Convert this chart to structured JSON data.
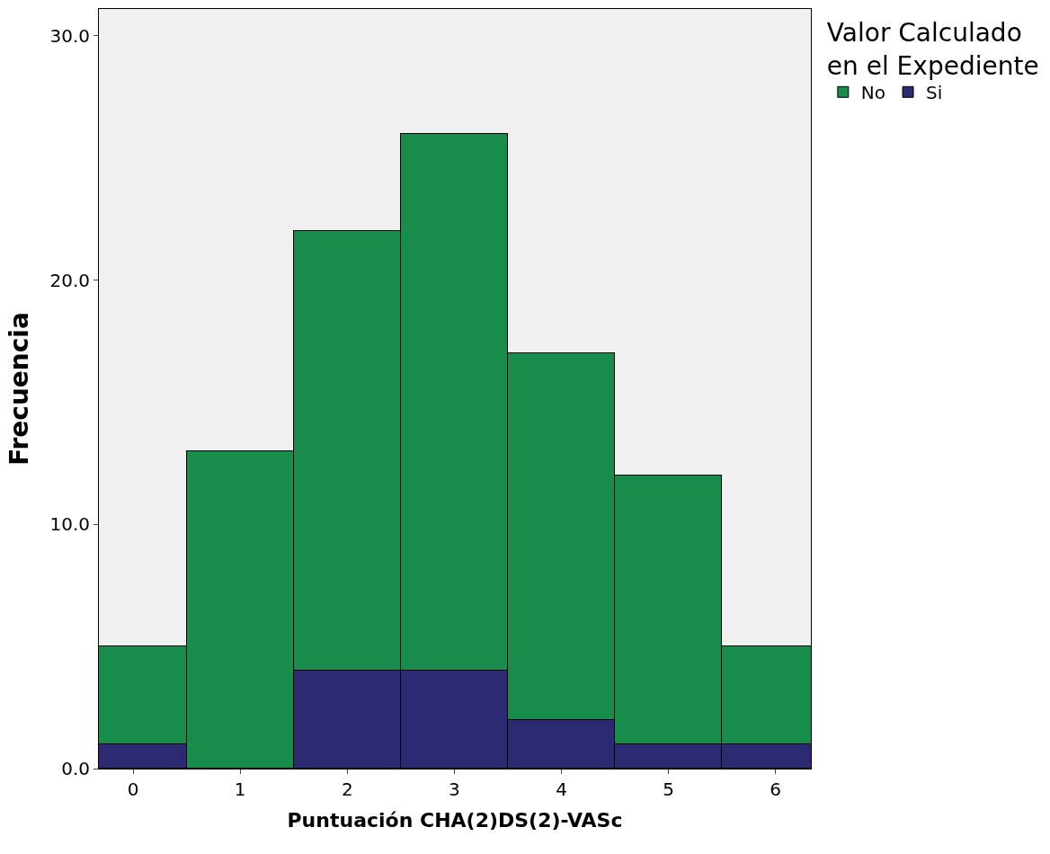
{
  "chart_data": {
    "type": "bar",
    "xlabel": "Puntuación CHA(2)DS(2)-VASc",
    "ylabel": "Frecuencia",
    "legend_title": "Valor Calculado en el Expediente",
    "x": [
      0,
      1,
      2,
      3,
      4,
      5,
      6
    ],
    "stacked": true,
    "series": [
      {
        "name": "Si",
        "color": "#2b2a72",
        "values": [
          1,
          0,
          4,
          4,
          2,
          1,
          1
        ]
      },
      {
        "name": "No",
        "color": "#178c4b",
        "values": [
          4,
          13,
          18,
          22,
          15,
          11,
          4
        ]
      }
    ],
    "xlim": [
      -0.32,
      6.33
    ],
    "xticks": [
      0,
      1,
      2,
      3,
      4,
      5,
      6
    ],
    "ylim": [
      0,
      31.1
    ],
    "yticks": [
      {
        "value": 0,
        "label": "0.0"
      },
      {
        "value": 10,
        "label": "10.0"
      },
      {
        "value": 20,
        "label": "20.0"
      },
      {
        "value": 30,
        "label": "30.0"
      }
    ],
    "grid": false,
    "legend": "top right"
  }
}
